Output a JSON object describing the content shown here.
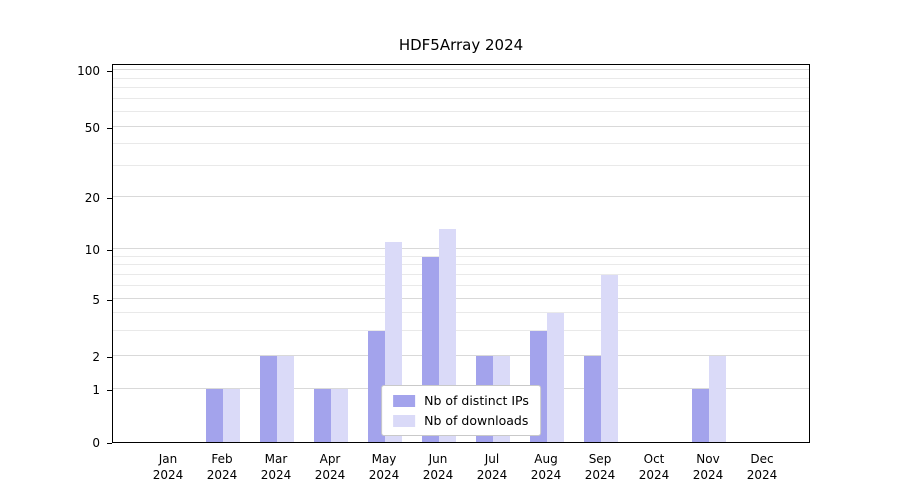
{
  "title": "HDF5Array 2024",
  "chart_data": {
    "type": "bar",
    "title": "HDF5Array 2024",
    "categories": [
      "Jan",
      "Feb",
      "Mar",
      "Apr",
      "May",
      "Jun",
      "Jul",
      "Aug",
      "Sep",
      "Oct",
      "Nov",
      "Dec"
    ],
    "year": "2024",
    "series": [
      {
        "name": "Nb of distinct IPs",
        "color": "#a3a3ec",
        "values": [
          0,
          1,
          2,
          1,
          3,
          9,
          2,
          3,
          2,
          0,
          1,
          0
        ]
      },
      {
        "name": "Nb of downloads",
        "color": "#dadaf8",
        "values": [
          0,
          1,
          2,
          1,
          11,
          13,
          2,
          4,
          7,
          0,
          2,
          0
        ]
      }
    ],
    "yticks": [
      0,
      1,
      2,
      5,
      10,
      20,
      50,
      100
    ],
    "minor_gridlines": [
      3,
      4,
      6,
      7,
      8,
      9,
      30,
      40,
      60,
      70,
      80,
      90
    ],
    "ylim": [
      0,
      100
    ],
    "scale": "log-like",
    "grid": "horizontal",
    "legend_position": "bottom-center-inside",
    "xlabel": "",
    "ylabel": ""
  }
}
